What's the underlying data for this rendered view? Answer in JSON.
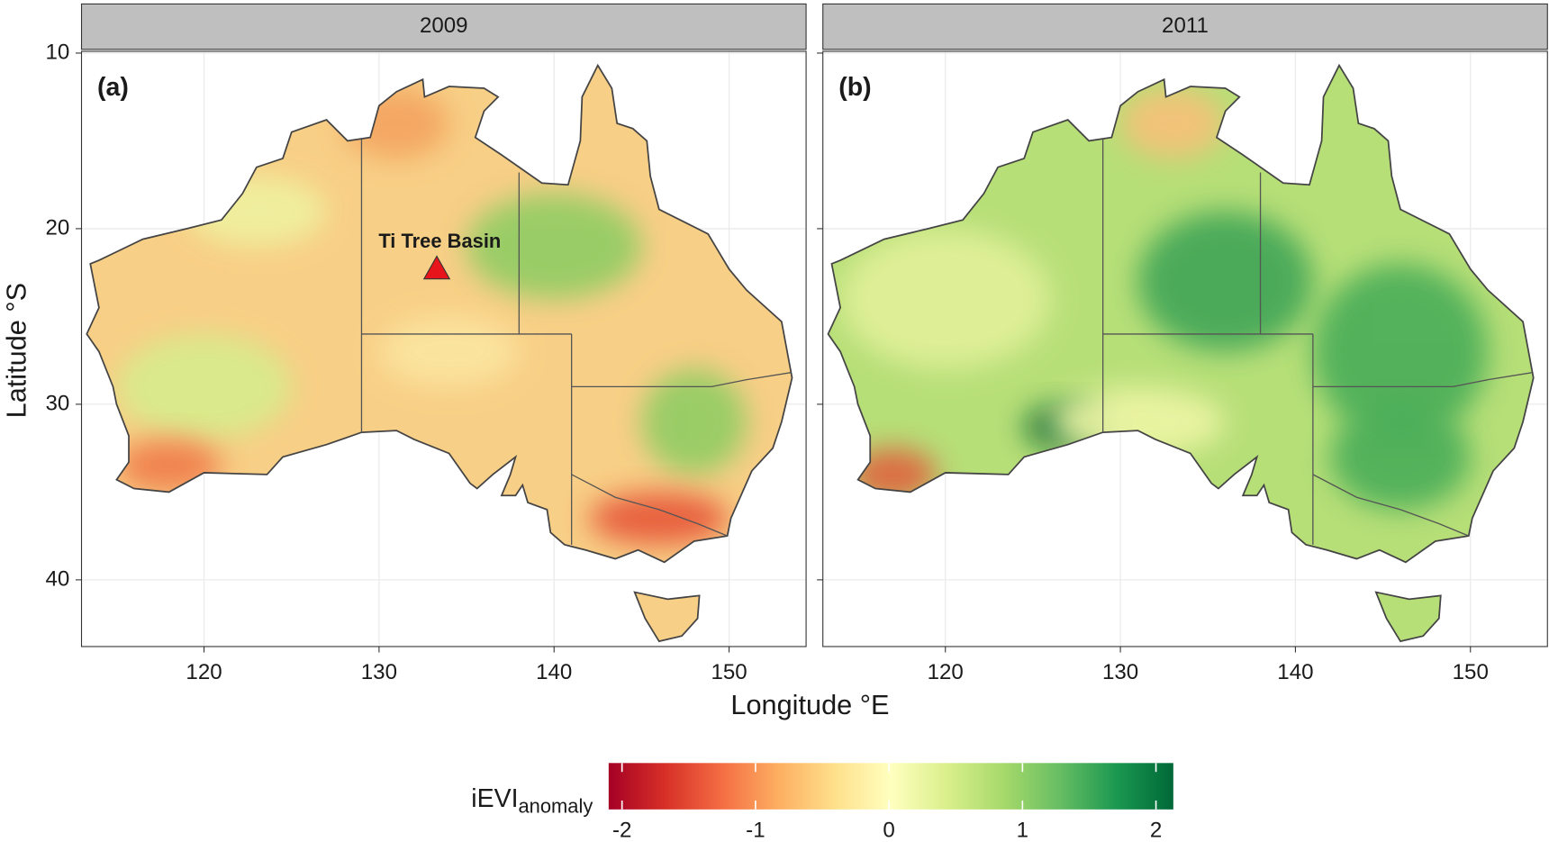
{
  "panels": [
    {
      "strip": "2009",
      "label": "(a)"
    },
    {
      "strip": "2011",
      "label": "(b)"
    }
  ],
  "annotation": {
    "label": "Ti Tree Basin",
    "lon": 133.3,
    "lat": 22.3
  },
  "x_axis": {
    "label": "Longitude °E",
    "lim": [
      113,
      154.4
    ],
    "ticks": [
      120,
      130,
      140,
      150
    ]
  },
  "y_axis": {
    "label": "Latitude °S",
    "lim": [
      9.9,
      43.8
    ],
    "ticks": [
      10,
      20,
      30,
      40
    ]
  },
  "colorbar": {
    "title": "iEVI",
    "title_subscript": "anomaly",
    "lim": [
      -2.1,
      2.13
    ],
    "ticks": [
      -2,
      -1,
      0,
      1,
      2
    ],
    "colors": [
      "#A50026",
      "#D73027",
      "#F46D43",
      "#FDAE61",
      "#FEE08B",
      "#FFFFBF",
      "#D9EF8B",
      "#A6D96A",
      "#66BD63",
      "#1A9850",
      "#006837"
    ]
  }
}
